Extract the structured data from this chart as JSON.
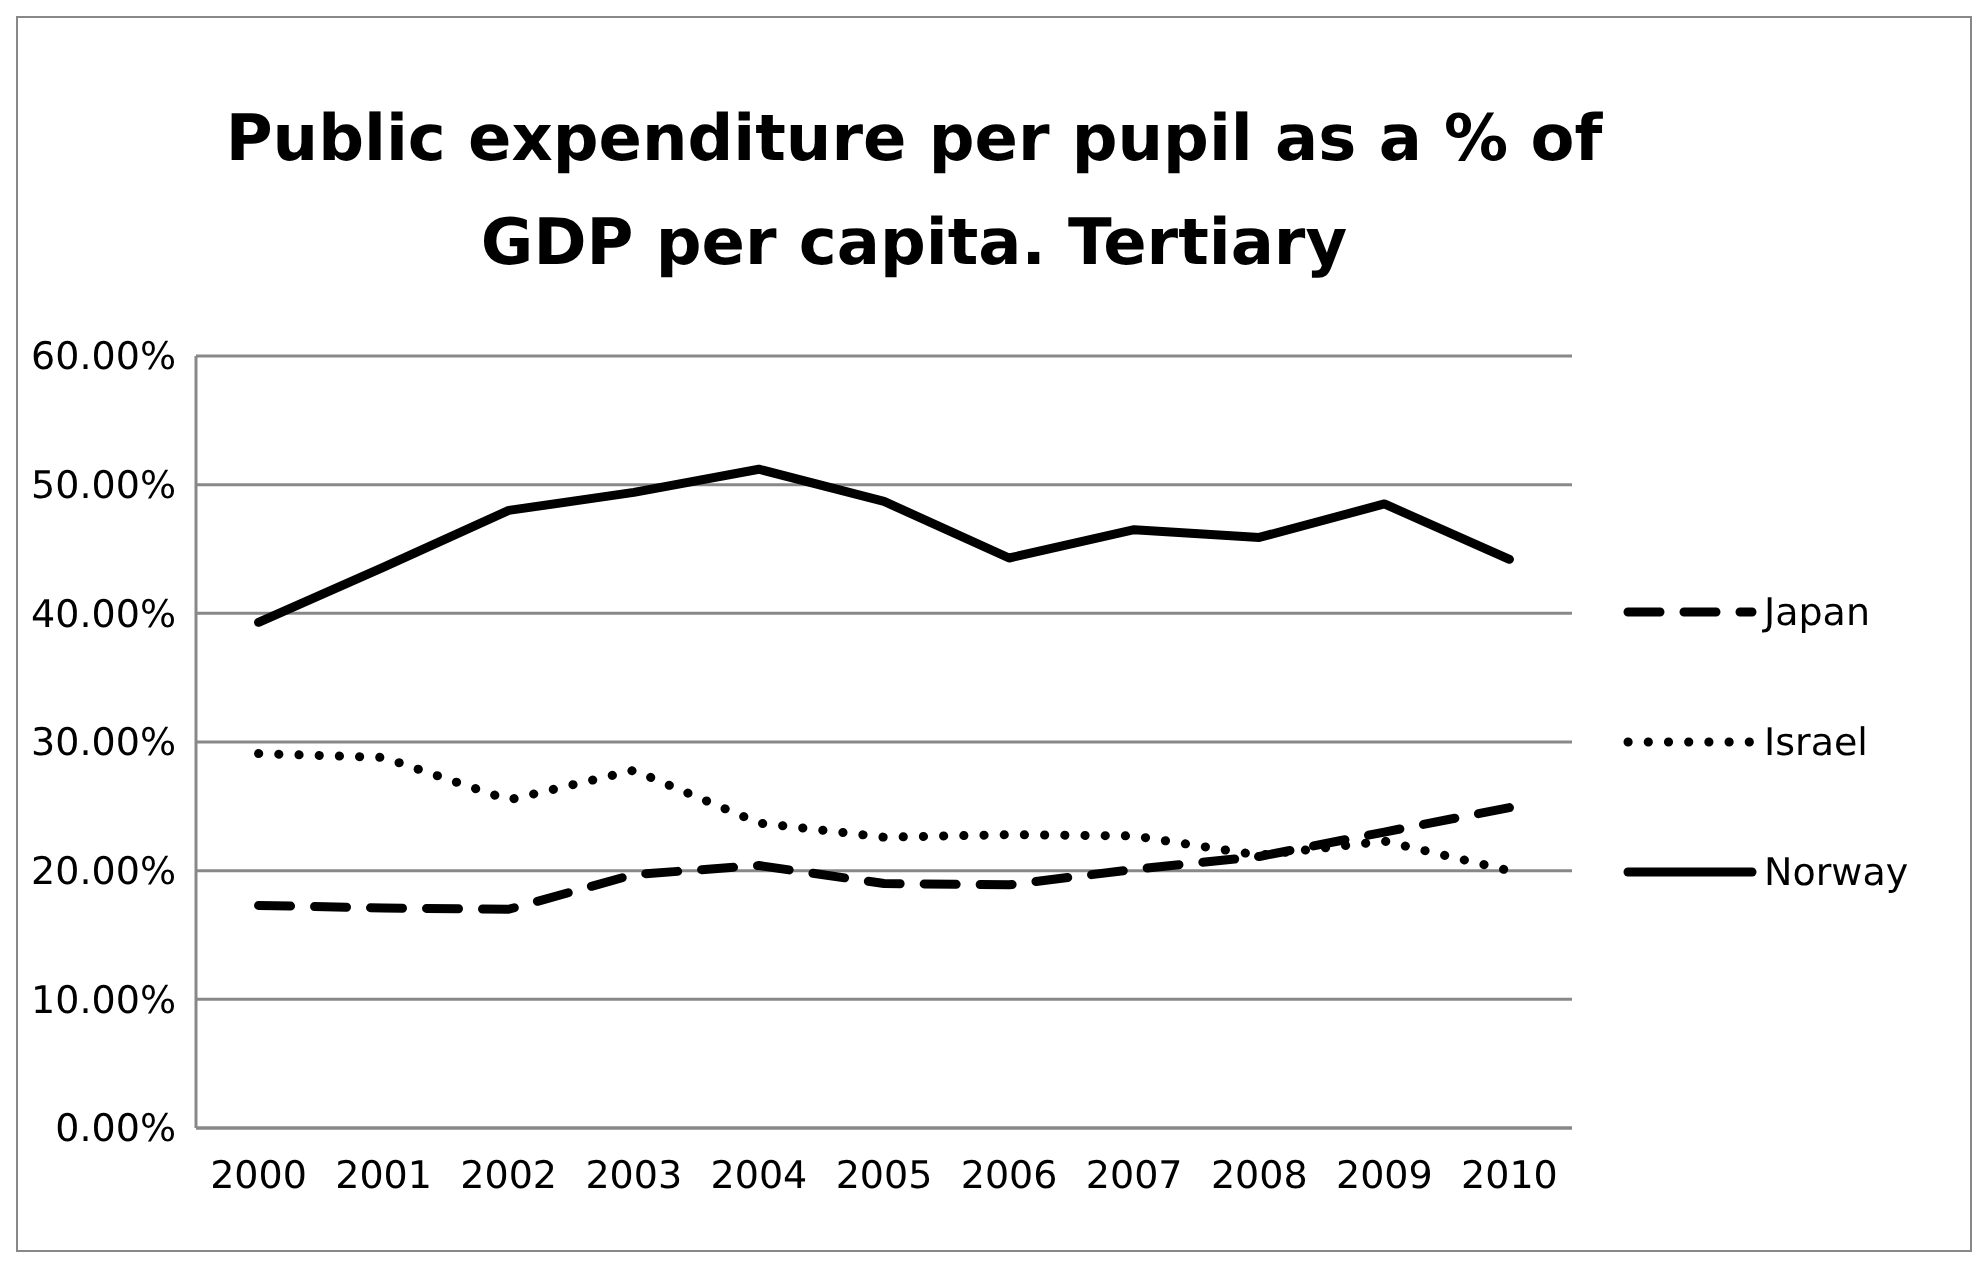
{
  "chart_data": {
    "type": "line",
    "title": "Public expenditure per pupil as a % of GDP per capita. Tertiary",
    "categories": [
      "2000",
      "2001",
      "2002",
      "2003",
      "2004",
      "2005",
      "2006",
      "2007",
      "2008",
      "2009",
      "2010"
    ],
    "series": [
      {
        "name": "Japan",
        "color": "#000000",
        "line_style": "dashed",
        "values": [
          17.3,
          17.1,
          17.0,
          19.7,
          20.4,
          19.0,
          18.9,
          20.1,
          21.1,
          23.0,
          24.9
        ]
      },
      {
        "name": "Israel",
        "color": "#000000",
        "line_style": "dotted",
        "values": [
          29.1,
          28.8,
          25.5,
          27.8,
          23.7,
          22.6,
          22.8,
          22.7,
          21.2,
          22.3,
          20.0
        ]
      },
      {
        "name": "Norway",
        "color": "#000000",
        "line_style": "solid",
        "values": [
          39.3,
          43.6,
          48.0,
          49.4,
          51.2,
          48.7,
          44.3,
          46.5,
          45.9,
          48.5,
          44.2
        ]
      }
    ],
    "ylim": [
      0,
      60
    ],
    "yticks": [
      {
        "value": 0,
        "label": "0.00%"
      },
      {
        "value": 10,
        "label": "10.00%"
      },
      {
        "value": 20,
        "label": "20.00%"
      },
      {
        "value": 30,
        "label": "30.00%"
      },
      {
        "value": 40,
        "label": "40.00%"
      },
      {
        "value": 50,
        "label": "50.00%"
      },
      {
        "value": 60,
        "label": "60.00%"
      }
    ],
    "grid": "y",
    "legend": "right",
    "marker": "none"
  }
}
